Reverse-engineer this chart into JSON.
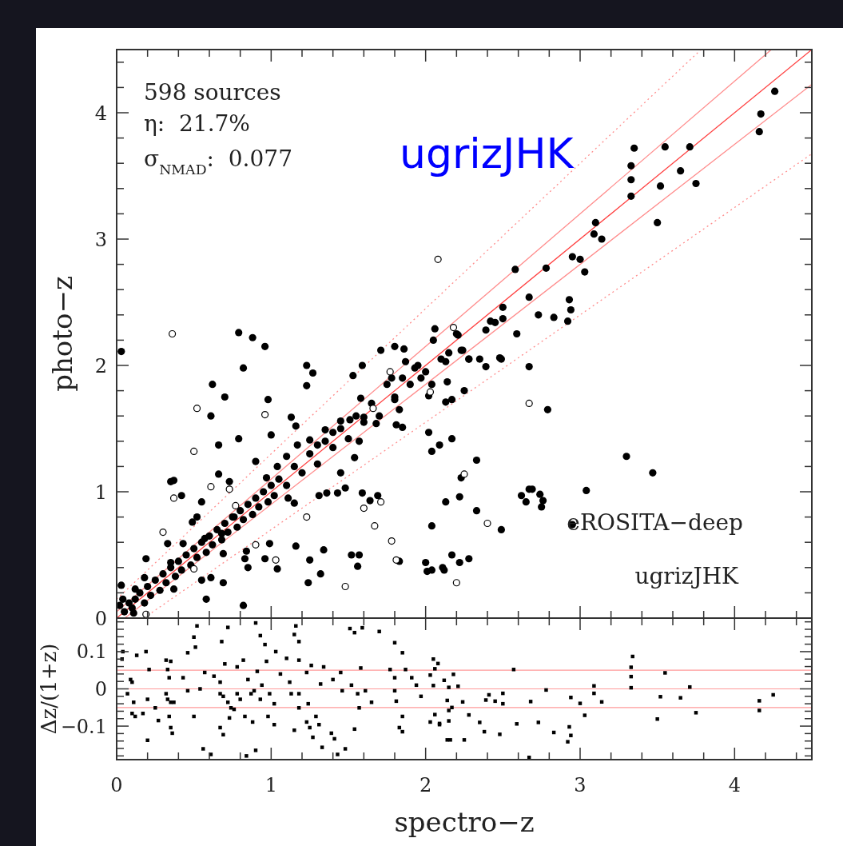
{
  "chart_data": [
    {
      "type": "scatter",
      "ylabel": "photo−z",
      "xlim": [
        0,
        4.5
      ],
      "ylim": [
        0,
        4.5
      ],
      "tick_labels": "y",
      "xticks": [
        0,
        {
          "value": 0.2,
          "label": null
        },
        {
          "value": 0.4,
          "label": null
        },
        {
          "value": 0.6,
          "label": null
        },
        {
          "value": 0.8,
          "label": null
        },
        1,
        {
          "value": 1.2,
          "label": null
        },
        {
          "value": 1.4,
          "label": null
        },
        {
          "value": 1.6,
          "label": null
        },
        {
          "value": 1.8,
          "label": null
        },
        2,
        {
          "value": 2.2,
          "label": null
        },
        {
          "value": 2.4,
          "label": null
        },
        {
          "value": 2.6,
          "label": null
        },
        {
          "value": 2.8,
          "label": null
        },
        3,
        {
          "value": 3.2,
          "label": null
        },
        {
          "value": 3.4,
          "label": null
        },
        {
          "value": 3.6,
          "label": null
        },
        {
          "value": 3.8,
          "label": null
        },
        4,
        {
          "value": 4.2,
          "label": null
        },
        {
          "value": 4.4,
          "label": null
        }
      ],
      "yticks": [
        0,
        {
          "value": 0.2,
          "label": null
        },
        {
          "value": 0.4,
          "label": null
        },
        {
          "value": 0.6,
          "label": null
        },
        {
          "value": 0.8,
          "label": null
        },
        1,
        {
          "value": 1.2,
          "label": null
        },
        {
          "value": 1.4,
          "label": null
        },
        {
          "value": 1.6,
          "label": null
        },
        {
          "value": 1.8,
          "label": null
        },
        2,
        {
          "value": 2.2,
          "label": null
        },
        {
          "value": 2.4,
          "label": null
        },
        {
          "value": 2.6,
          "label": null
        },
        {
          "value": 2.8,
          "label": null
        },
        3,
        {
          "value": 3.2,
          "label": null
        },
        {
          "value": 3.4,
          "label": null
        },
        {
          "value": 3.6,
          "label": null
        },
        {
          "value": 3.8,
          "label": null
        },
        4,
        {
          "value": 4.2,
          "label": null
        },
        {
          "value": 4.4,
          "label": null
        }
      ],
      "marker": "circle",
      "annotations": [
        "598 sources",
        "η:  21.7%",
        "σ$_{NMAD}$:  0.077",
        "ugrizJHK",
        "eROSITA−deep",
        "ugrizJHK"
      ],
      "series": [
        {
          "type": "line",
          "marker": "none",
          "color": "#ff4040",
          "line_style": "solid",
          "x": [
            0,
            4.5
          ],
          "values": [
            0,
            4.5
          ]
        },
        {
          "type": "line",
          "marker": "none",
          "color": "#ff8c8c",
          "line_style": "solid",
          "x": [
            0,
            4.238
          ],
          "values": [
            0.05,
            4.5
          ]
        },
        {
          "type": "line",
          "marker": "none",
          "color": "#ff8c8c",
          "line_style": "solid",
          "x": [
            0.0526,
            4.5
          ],
          "values": [
            0,
            4.225
          ]
        },
        {
          "type": "line",
          "marker": "none",
          "color": "#ff8c8c",
          "line_style": "dotted",
          "x": [
            0,
            3.783
          ],
          "values": [
            0.15,
            4.5
          ]
        },
        {
          "type": "line",
          "marker": "none",
          "color": "#ff8c8c",
          "line_style": "dotted",
          "x": [
            0.176,
            4.5
          ],
          "values": [
            0,
            3.675
          ]
        },
        {
          "color": "#000000",
          "x": [
            0.02,
            0.05,
            0.08,
            0.1,
            0.12,
            0.15,
            0.18,
            0.2,
            0.22,
            0.25,
            0.28,
            0.3,
            0.32,
            0.35,
            0.38,
            0.4,
            0.42,
            0.45,
            0.48,
            0.5,
            0.52,
            0.55,
            0.58,
            0.6,
            0.62,
            0.65,
            0.68,
            0.7,
            0.72,
            0.75,
            0.78,
            0.8,
            0.82,
            0.85,
            0.88,
            0.9,
            0.92,
            0.95,
            0.98,
            1.0,
            1.02,
            1.05,
            1.1,
            1.15,
            1.2,
            1.25,
            1.3,
            1.35,
            1.4,
            1.45,
            1.5,
            1.55,
            1.6,
            1.65,
            1.7,
            1.75,
            1.8,
            1.85,
            1.9,
            1.95,
            2.0,
            2.05,
            2.1,
            2.15,
            2.2,
            0.03,
            0.79,
            0.88,
            0.96,
            0.82,
            1.23,
            1.27,
            1.71,
            1.8,
            1.86,
            2.06,
            2.21,
            2.23,
            2.28,
            1.53,
            1.59,
            4.26,
            4.17,
            4.16,
            3.35,
            3.55,
            3.71,
            3.33,
            3.65,
            3.33,
            3.52,
            3.75,
            3.33,
            3.5,
            3.1,
            3.09,
            3.14,
            2.95,
            3.0,
            3.03,
            2.58,
            2.78,
            2.67,
            2.93,
            2.94,
            2.92,
            2.5,
            2.5,
            2.42,
            2.45,
            2.39,
            2.73,
            2.83,
            2.59,
            2.24,
            2.28,
            2.35,
            2.39,
            2.48,
            2.67,
            0.62,
            0.7,
            0.61,
            0.66,
            0.79,
            1.23,
            0.98,
            1.0,
            1.13,
            1.58,
            2.02,
            2.17,
            2.04,
            2.09,
            2.25,
            2.02,
            2.04,
            2.13,
            2.17,
            1.83,
            1.81,
            1.85,
            2.23,
            2.22,
            2.13,
            2.04,
            1.59,
            1.64,
            1.69,
            1.43,
            1.31,
            1.36,
            1.15,
            1.11,
            1.48,
            1.45,
            1.16,
            1.34,
            0.99,
            0.96,
            1.04,
            1.25,
            1.32,
            1.24,
            1.52,
            1.57,
            1.56,
            1.83,
            2.0,
            2.01,
            2.04,
            2.11,
            2.12,
            2.17,
            2.22,
            2.28,
            0.82,
            0.58,
            0.69,
            0.55,
            0.61,
            0.85,
            0.83,
            0.84,
            0.42,
            0.35,
            0.37,
            0.19,
            0.03,
            0.33,
            0.55,
            0.52,
            1.16,
            1.1,
            1.25,
            1.35,
            1.45,
            1.51,
            1.57,
            1.54,
            1.68,
            1.6,
            0.66,
            0.73,
            0.9,
            0.97,
            1.04,
            1.17,
            1.3,
            1.4,
            1.78,
            1.87,
            1.93,
            1.97,
            1.8,
            2.13,
            2.14,
            0.49,
            0.43,
            0.35,
            0.37,
            0.18,
            0.12,
            0.04,
            0.11,
            0.69,
            0.68,
            0.76,
            0.57,
            2.49,
            2.79,
            2.33,
            2.33,
            2.49,
            3.3,
            3.47,
            3.04,
            2.62,
            2.65,
            2.67,
            2.69,
            2.74,
            2.76,
            2.75,
            2.95
          ],
          "values": [
            0.1,
            0.05,
            0.12,
            0.08,
            0.15,
            0.2,
            0.12,
            0.25,
            0.18,
            0.3,
            0.22,
            0.35,
            0.28,
            0.4,
            0.33,
            0.45,
            0.38,
            0.5,
            0.42,
            0.55,
            0.48,
            0.6,
            0.52,
            0.65,
            0.58,
            0.7,
            0.62,
            0.75,
            0.68,
            0.8,
            0.72,
            0.85,
            0.78,
            0.9,
            0.82,
            0.95,
            0.88,
            1.0,
            0.92,
            1.05,
            0.97,
            1.1,
            1.05,
            1.2,
            1.15,
            1.3,
            1.22,
            1.4,
            1.35,
            1.5,
            1.42,
            1.6,
            1.55,
            1.7,
            1.6,
            1.85,
            1.75,
            1.9,
            1.85,
            2.0,
            1.95,
            2.2,
            2.05,
            2.1,
            2.25,
            2.11,
            2.26,
            2.22,
            2.15,
            1.98,
            2.0,
            1.94,
            2.12,
            2.15,
            2.13,
            2.29,
            2.24,
            2.12,
            2.05,
            1.92,
            2.0,
            4.17,
            3.99,
            3.85,
            3.72,
            3.73,
            3.73,
            3.58,
            3.54,
            3.47,
            3.42,
            3.44,
            3.34,
            3.13,
            3.13,
            3.04,
            3.0,
            2.86,
            2.84,
            2.74,
            2.76,
            2.77,
            2.54,
            2.52,
            2.44,
            2.35,
            2.46,
            2.37,
            2.35,
            2.34,
            2.28,
            2.4,
            2.38,
            2.25,
            2.12,
            2.05,
            2.05,
            1.99,
            2.06,
            1.99,
            1.85,
            1.75,
            1.6,
            1.37,
            1.42,
            1.84,
            1.73,
            1.45,
            1.59,
            1.74,
            1.47,
            1.42,
            1.32,
            1.37,
            1.8,
            1.76,
            1.85,
            1.71,
            1.73,
            1.65,
            1.53,
            1.51,
            1.11,
            0.96,
            0.92,
            0.73,
            0.99,
            0.93,
            0.97,
            0.99,
            0.97,
            0.99,
            0.91,
            0.95,
            1.03,
            1.15,
            0.57,
            0.54,
            0.59,
            0.47,
            0.39,
            0.46,
            0.35,
            0.28,
            0.5,
            0.5,
            0.41,
            0.45,
            0.44,
            0.37,
            0.38,
            0.4,
            0.38,
            0.5,
            0.44,
            0.47,
            0.1,
            0.15,
            0.28,
            0.3,
            0.32,
            0.4,
            0.47,
            0.53,
            0.97,
            1.08,
            1.09,
            0.47,
            0.26,
            0.59,
            0.92,
            0.8,
            1.52,
            1.28,
            1.41,
            1.49,
            1.56,
            1.57,
            1.4,
            1.27,
            1.54,
            1.59,
            1.14,
            1.08,
            1.24,
            1.11,
            1.2,
            1.37,
            1.37,
            1.47,
            1.9,
            2.03,
            1.98,
            1.9,
            1.73,
            2.03,
            1.87,
            0.76,
            0.59,
            0.44,
            0.23,
            0.32,
            0.23,
            0.15,
            0.04,
            0.51,
            0.67,
            0.8,
            0.63,
            2.05,
            1.65,
            1.25,
            0.85,
            0.7,
            1.28,
            1.15,
            1.01,
            0.97,
            0.92,
            1.02,
            1.02,
            0.98,
            0.93,
            0.88,
            0.74
          ]
        },
        {
          "color": "#000000",
          "x": [
            0.36,
            2.08,
            2.18,
            0.52,
            0.96,
            0.5,
            0.61,
            0.73,
            0.37,
            0.3,
            0.77,
            1.23,
            0.9,
            1.03,
            1.48,
            1.6,
            1.71,
            1.67,
            1.78,
            1.81,
            2.2,
            2.25,
            0.19,
            0.5,
            1.77,
            2.03,
            1.66,
            2.67,
            2.4
          ],
          "values": [
            2.25,
            2.84,
            2.3,
            1.66,
            1.61,
            1.32,
            1.04,
            1.02,
            0.95,
            0.68,
            0.89,
            0.8,
            0.58,
            0.46,
            0.25,
            0.87,
            0.92,
            0.73,
            0.61,
            0.46,
            0.28,
            1.14,
            0.03,
            0.39,
            1.95,
            1.79,
            1.66,
            1.7,
            0.75
          ]
        }
      ]
    },
    {
      "type": "scatter",
      "xlabel": "spectro−z",
      "ylabel": "Δz/(1+z)",
      "xlim": [
        0,
        4.5
      ],
      "ylim": [
        -0.19,
        0.19
      ],
      "xticks": [
        0,
        {
          "value": 0.2,
          "label": null
        },
        {
          "value": 0.4,
          "label": null
        },
        {
          "value": 0.6,
          "label": null
        },
        {
          "value": 0.8,
          "label": null
        },
        1,
        {
          "value": 1.2,
          "label": null
        },
        {
          "value": 1.4,
          "label": null
        },
        {
          "value": 1.6,
          "label": null
        },
        {
          "value": 1.8,
          "label": null
        },
        2,
        {
          "value": 2.2,
          "label": null
        },
        {
          "value": 2.4,
          "label": null
        },
        {
          "value": 2.6,
          "label": null
        },
        {
          "value": 2.8,
          "label": null
        },
        3,
        {
          "value": 3.2,
          "label": null
        },
        {
          "value": 3.4,
          "label": null
        },
        {
          "value": 3.6,
          "label": null
        },
        {
          "value": 3.8,
          "label": null
        },
        4,
        {
          "value": 4.2,
          "label": null
        },
        {
          "value": 4.4,
          "label": null
        }
      ],
      "yticks": [
        {
          "value": -0.18,
          "label": null
        },
        {
          "value": -0.16,
          "label": null
        },
        {
          "value": -0.14,
          "label": null
        },
        {
          "value": -0.12,
          "label": null
        },
        {
          "value": -0.1,
          "label": "−0.1"
        },
        {
          "value": -0.08,
          "label": null
        },
        {
          "value": -0.06,
          "label": null
        },
        {
          "value": -0.04,
          "label": null
        },
        {
          "value": -0.02,
          "label": null
        },
        0,
        {
          "value": 0.02,
          "label": null
        },
        {
          "value": 0.04,
          "label": null
        },
        {
          "value": 0.06,
          "label": null
        },
        {
          "value": 0.08,
          "label": null
        },
        0.1,
        {
          "value": 0.12,
          "label": null
        },
        {
          "value": 0.14,
          "label": null
        },
        {
          "value": 0.16,
          "label": null
        },
        {
          "value": 0.18,
          "label": null
        }
      ],
      "marker": "square",
      "ref_lines": [
        {
          "axis": "y",
          "value": 0.05,
          "color": "#ff9999"
        },
        {
          "axis": "y",
          "value": 0,
          "color": "#ff9999"
        },
        {
          "axis": "y",
          "value": -0.05,
          "color": "#ff9999"
        }
      ],
      "series": [
        {
          "color": "#000000",
          "x": [
            0.04,
            0.035,
            0.09,
            0.1,
            0.07,
            0.11,
            0.1,
            0.12,
            0.19,
            0.2,
            0.13,
            0.21,
            0.2,
            0.17,
            0.25,
            0.32,
            0.35,
            0.33,
            0.34,
            0.32,
            0.33,
            0.35,
            0.37,
            0.34,
            0.35,
            0.36,
            0.27,
            0.43,
            0.46,
            0.51,
            0.52,
            0.5,
            0.5,
            0.46,
            0.54,
            0.56,
            0.61,
            0.57,
            0.63,
            0.67,
            0.68,
            0.7,
            0.72,
            0.67,
            0.69,
            0.72,
            0.74,
            0.76,
            0.78,
            0.8,
            0.67,
            0.69,
            0.73,
            0.78,
            0.82,
            0.83,
            0.84,
            0.85,
            0.87,
            0.89,
            0.9,
            0.88,
            0.9,
            0.91,
            0.93,
            0.93,
            0.94,
            0.96,
            0.97,
            0.98,
            0.99,
            1.02,
            1.03,
            1.02,
            1.06,
            1.1,
            1.12,
            1.13,
            1.15,
            1.16,
            1.18,
            1.15,
            1.18,
            1.18,
            1.18,
            1.23,
            1.24,
            1.23,
            1.26,
            1.25,
            1.27,
            1.29,
            1.31,
            1.32,
            1.34,
            1.33,
            1.39,
            1.41,
            1.43,
            1.48,
            1.4,
            1.45,
            1.46,
            1.51,
            1.54,
            1.59,
            1.58,
            1.52,
            1.56,
            1.57,
            1.54,
            1.61,
            1.65,
            1.7,
            1.77,
            1.8,
            1.8,
            1.8,
            1.81,
            1.85,
            1.85,
            1.83,
            1.85,
            1.87,
            1.91,
            1.94,
            1.97,
            2.03,
            2.03,
            2.05,
            2.09,
            2.08,
            2.06,
            2.05,
            2.12,
            2.15,
            2.18,
            2.21,
            2.14,
            2.24,
            2.06,
            2.09,
            2.15,
            2.17,
            2.15,
            2.14,
            2.16,
            2.25,
            2.28,
            2.35,
            2.38,
            2.39,
            2.41,
            2.45,
            2.48,
            2.5,
            2.5,
            2.57,
            2.59,
            2.67,
            2.68,
            2.73,
            2.78,
            2.83,
            2.92,
            2.93,
            2.94,
            2.94,
            3.0,
            3.03,
            3.09,
            3.09,
            3.14,
            3.33,
            3.33,
            3.34,
            3.33,
            3.5,
            3.52,
            3.55,
            3.65,
            3.71,
            3.75,
            4.16,
            4.16,
            4.25
          ],
          "values": [
            0.1,
            0.08,
            0.025,
            0.018,
            -0.013,
            -0.036,
            -0.066,
            -0.074,
            0.1,
            -0.138,
            0.09,
            0.052,
            -0.028,
            -0.066,
            -0.051,
            0.077,
            0.074,
            0.052,
            0.03,
            -0.013,
            -0.028,
            -0.036,
            -0.036,
            -0.074,
            -0.104,
            -0.119,
            -0.085,
            0.03,
            0.097,
            0.112,
            0.169,
            0.139,
            -0.074,
            -0.005,
            0.0,
            -0.161,
            -0.176,
            0.044,
            0.034,
            0.018,
            0.127,
            0.067,
            0.165,
            -0.013,
            -0.02,
            -0.036,
            -0.051,
            -0.055,
            -0.013,
            -0.028,
            -0.104,
            -0.123,
            -0.078,
            0.059,
            0.077,
            -0.074,
            -0.18,
            0.025,
            -0.013,
            -0.005,
            0.177,
            -0.089,
            -0.165,
            0.047,
            0.143,
            -0.028,
            0.01,
            0.119,
            0.074,
            -0.074,
            -0.013,
            -0.04,
            0.1,
            -0.096,
            0.04,
            0.082,
            0.018,
            -0.013,
            0.146,
            0.169,
            0.127,
            -0.111,
            -0.051,
            0.077,
            -0.013,
            0.044,
            -0.04,
            -0.089,
            0.063,
            -0.104,
            -0.13,
            -0.074,
            -0.096,
            0.013,
            0.059,
            -0.157,
            -0.119,
            -0.134,
            -0.176,
            -0.161,
            0.025,
            0.044,
            -0.005,
            0.162,
            0.151,
            0.164,
            0.056,
            0.01,
            -0.013,
            -0.051,
            -0.108,
            -0.005,
            -0.036,
            0.154,
            0.052,
            0.03,
            0.124,
            -0.005,
            -0.033,
            0.097,
            -0.074,
            -0.104,
            -0.115,
            0.052,
            0.03,
            0.01,
            -0.02,
            -0.089,
            0.037,
            0.08,
            -0.093,
            0.068,
            0.054,
            0.009,
            0.023,
            0.004,
            0.039,
            0.007,
            -0.031,
            -0.035,
            -0.069,
            -0.096,
            -0.058,
            -0.05,
            -0.086,
            -0.137,
            -0.137,
            -0.137,
            -0.07,
            -0.09,
            -0.115,
            -0.03,
            -0.016,
            -0.033,
            -0.122,
            -0.012,
            -0.04,
            0.052,
            -0.094,
            -0.184,
            -0.034,
            -0.09,
            -0.003,
            -0.117,
            -0.142,
            -0.102,
            -0.125,
            -0.023,
            -0.039,
            -0.071,
            0.008,
            -0.012,
            -0.035,
            0.033,
            0.058,
            0.087,
            0.003,
            -0.081,
            -0.021,
            0.043,
            -0.024,
            0.005,
            -0.064,
            -0.032,
            -0.058,
            -0.016
          ]
        }
      ]
    }
  ]
}
